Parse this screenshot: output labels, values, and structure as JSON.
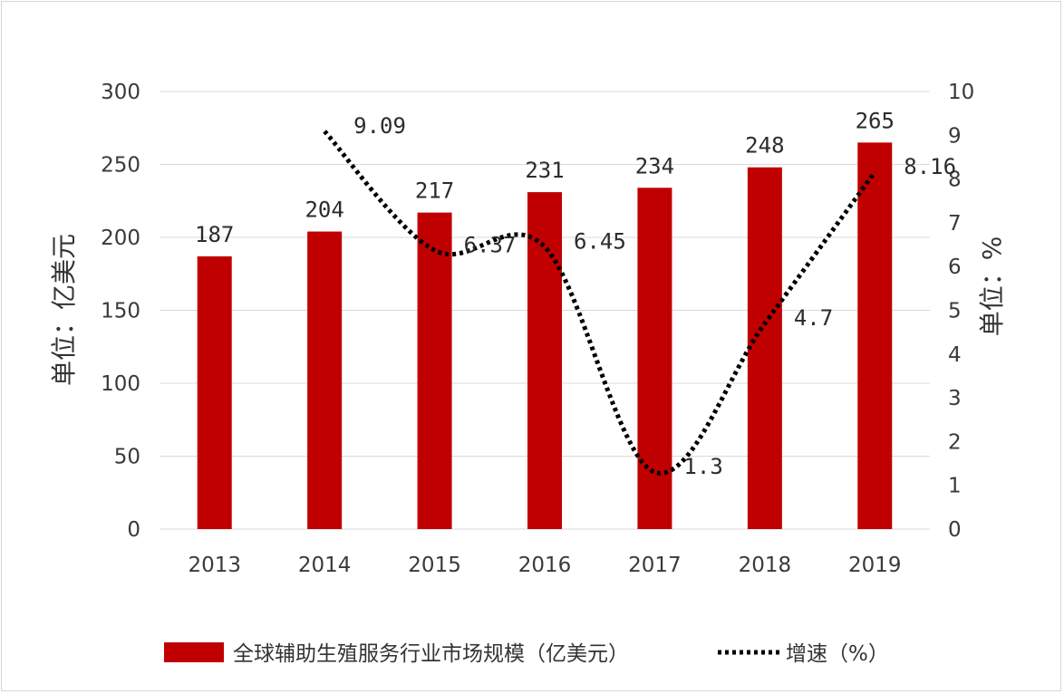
{
  "chart_data": {
    "type": "bar",
    "categories": [
      "2013",
      "2014",
      "2015",
      "2016",
      "2017",
      "2018",
      "2019"
    ],
    "series": [
      {
        "name": "全球辅助生殖服务行业市场规模（亿美元）",
        "type": "bar",
        "axis": "left",
        "values": [
          187,
          204,
          217,
          231,
          234,
          248,
          265
        ],
        "labels": [
          "187",
          "204",
          "217",
          "231",
          "234",
          "248",
          "265"
        ],
        "color": "#c00000"
      },
      {
        "name": "增速（%）",
        "type": "line",
        "axis": "right",
        "style": "dotted",
        "x": [
          "2014",
          "2015",
          "2016",
          "2017",
          "2018",
          "2019"
        ],
        "values": [
          9.09,
          6.37,
          6.45,
          1.3,
          4.7,
          8.16
        ],
        "labels": [
          "9.09",
          "6.37",
          "6.45",
          "1.3",
          "4.7",
          "8.16"
        ],
        "color": "#000000"
      }
    ],
    "ylabel": "单位：亿美元",
    "y2label": "单位：%",
    "ylim": [
      0,
      300
    ],
    "y2lim": [
      0,
      10
    ],
    "yticks": [
      "0",
      "50",
      "100",
      "150",
      "200",
      "250",
      "300"
    ],
    "y2ticks": [
      "0",
      "1",
      "2",
      "3",
      "4",
      "5",
      "6",
      "7",
      "8",
      "9",
      "10"
    ],
    "grid": true,
    "legend_position": "bottom"
  }
}
